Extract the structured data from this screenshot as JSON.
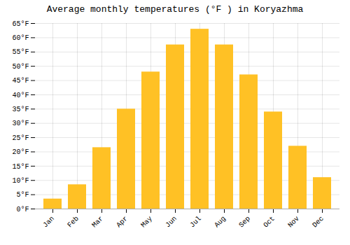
{
  "chart_data": {
    "type": "bar",
    "title": "Average monthly temperatures (°F ) in Koryazhma",
    "categories": [
      "Jan",
      "Feb",
      "Mar",
      "Apr",
      "May",
      "Jun",
      "Jul",
      "Aug",
      "Sep",
      "Oct",
      "Nov",
      "Dec"
    ],
    "values": [
      3.5,
      8.5,
      21.5,
      35,
      48,
      57.5,
      63,
      57.5,
      47,
      34,
      22,
      11
    ],
    "color": "#FFC125",
    "ylim": [
      0,
      65
    ],
    "yticks": [
      {
        "value": 0,
        "label": "0°F"
      },
      {
        "value": 5,
        "label": "5°F"
      },
      {
        "value": 10,
        "label": "10°F"
      },
      {
        "value": 15,
        "label": "15°F"
      },
      {
        "value": 20,
        "label": "20°F"
      },
      {
        "value": 25,
        "label": "25°F"
      },
      {
        "value": 30,
        "label": "30°F"
      },
      {
        "value": 35,
        "label": "35°F"
      },
      {
        "value": 40,
        "label": "40°F"
      },
      {
        "value": 45,
        "label": "45°F"
      },
      {
        "value": 50,
        "label": "50°F"
      },
      {
        "value": 55,
        "label": "55°F"
      },
      {
        "value": 60,
        "label": "60°F"
      },
      {
        "value": 65,
        "label": "65°F"
      }
    ],
    "grid": true
  }
}
